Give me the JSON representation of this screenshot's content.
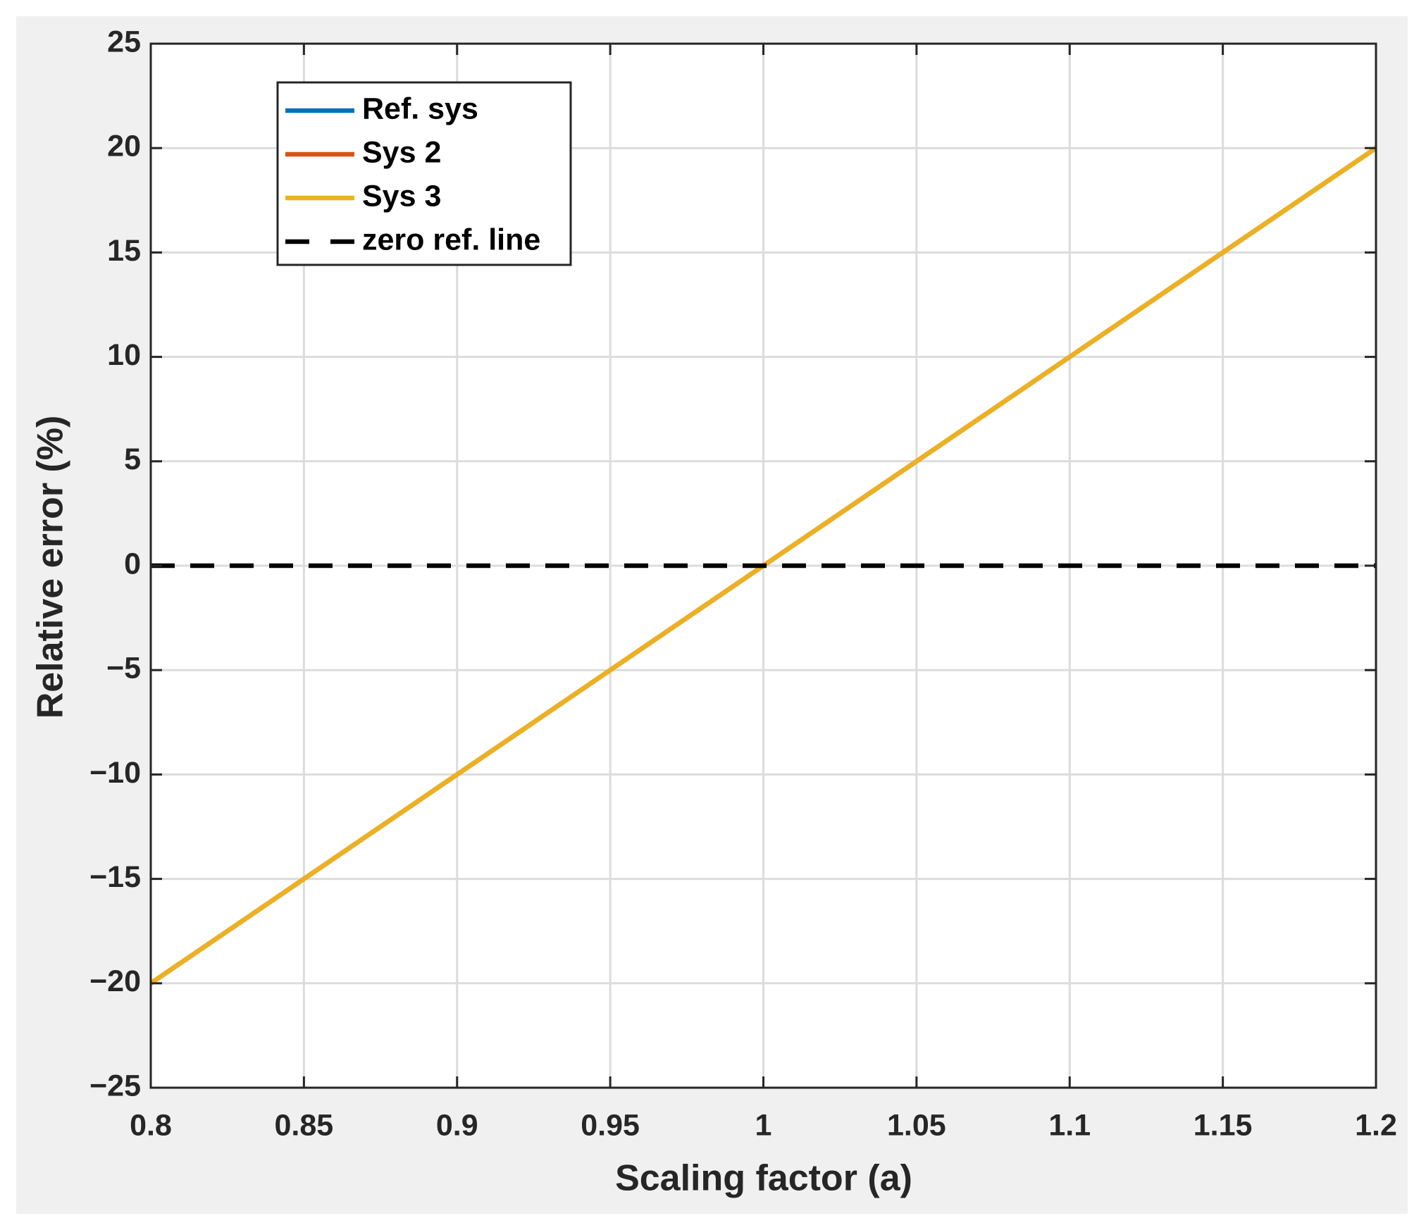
{
  "chart_data": {
    "type": "line",
    "xlabel": "Scaling factor (a)",
    "ylabel": "Relative error (%)",
    "x": [
      0.8,
      1.2
    ],
    "series": [
      {
        "name": "Ref. sys",
        "color": "#0072bd",
        "values": [
          -20,
          20
        ]
      },
      {
        "name": "Sys 2",
        "color": "#d95319",
        "values": [
          -20,
          20
        ]
      },
      {
        "name": "Sys 3",
        "color": "#edb120",
        "values": [
          -20,
          20
        ]
      },
      {
        "name": "zero ref. line",
        "color": "#000000",
        "dashed": true,
        "values": [
          0,
          0
        ]
      }
    ],
    "xlim": [
      0.8,
      1.2
    ],
    "xticks": [
      0.8,
      0.85,
      0.9,
      0.95,
      1,
      1.05,
      1.1,
      1.15,
      1.2
    ],
    "ylim": [
      -25,
      25
    ],
    "yticks": [
      {
        "value": -25,
        "label": "−25"
      },
      {
        "value": -20,
        "label": "−20"
      },
      {
        "value": -15,
        "label": "−15"
      },
      {
        "value": -10,
        "label": "−10"
      },
      {
        "value": -5,
        "label": "−5"
      },
      0,
      5,
      10,
      15,
      20,
      25
    ],
    "grid": true,
    "legend": "upper left"
  }
}
